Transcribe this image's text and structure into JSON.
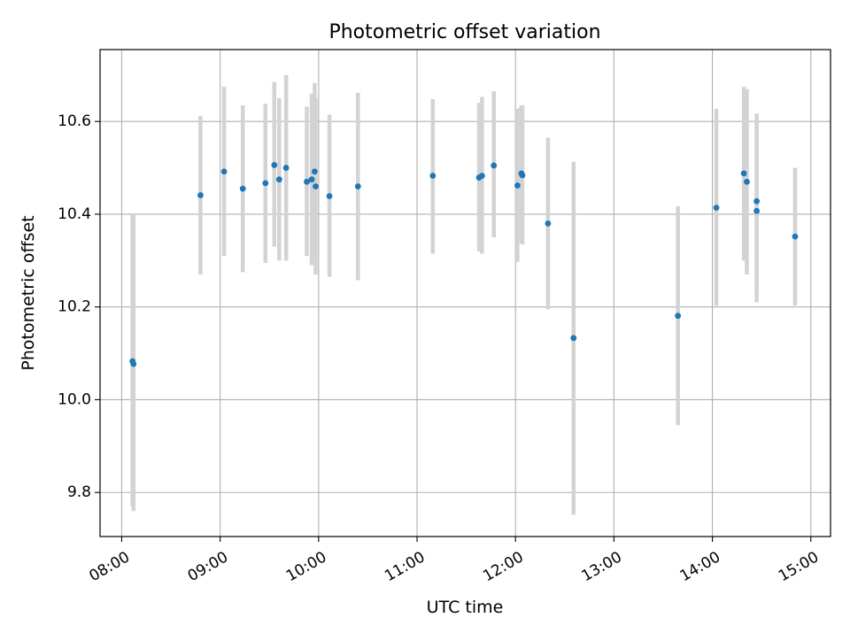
{
  "chart_data": {
    "type": "scatter",
    "title": "Photometric offset variation",
    "xlabel": "UTC time",
    "ylabel": "Photometric offset",
    "xlim": [
      7.78,
      15.2
    ],
    "ylim": [
      9.705,
      10.755
    ],
    "x_ticks": [
      8,
      9,
      10,
      11,
      12,
      13,
      14,
      15
    ],
    "x_tick_labels": [
      "08:00",
      "09:00",
      "10:00",
      "11:00",
      "12:00",
      "13:00",
      "14:00",
      "15:00"
    ],
    "y_ticks": [
      9.8,
      10.0,
      10.2,
      10.4,
      10.6
    ],
    "y_tick_labels": [
      "9.8",
      "10.0",
      "10.2",
      "10.4",
      "10.6"
    ],
    "grid": true,
    "colors": {
      "points": "#1f77b4",
      "errorbars": "#d3d3d3",
      "grid": "#b0b0b0",
      "axes": "#000000"
    },
    "series": [
      {
        "points": [
          {
            "x": 8.11,
            "y": 10.083,
            "ylo": 9.77,
            "yhi": 10.4
          },
          {
            "x": 8.12,
            "y": 10.077,
            "ylo": 9.76,
            "yhi": 10.4
          },
          {
            "x": 8.8,
            "y": 10.441,
            "ylo": 10.27,
            "yhi": 10.612
          },
          {
            "x": 9.04,
            "y": 10.492,
            "ylo": 10.31,
            "yhi": 10.675
          },
          {
            "x": 9.23,
            "y": 10.455,
            "ylo": 10.275,
            "yhi": 10.635
          },
          {
            "x": 9.46,
            "y": 10.467,
            "ylo": 10.295,
            "yhi": 10.638
          },
          {
            "x": 9.55,
            "y": 10.506,
            "ylo": 10.33,
            "yhi": 10.685
          },
          {
            "x": 9.6,
            "y": 10.475,
            "ylo": 10.3,
            "yhi": 10.65
          },
          {
            "x": 9.67,
            "y": 10.5,
            "ylo": 10.3,
            "yhi": 10.7
          },
          {
            "x": 9.88,
            "y": 10.47,
            "ylo": 10.31,
            "yhi": 10.632
          },
          {
            "x": 9.93,
            "y": 10.475,
            "ylo": 10.29,
            "yhi": 10.66
          },
          {
            "x": 9.96,
            "y": 10.492,
            "ylo": 10.3,
            "yhi": 10.683
          },
          {
            "x": 9.97,
            "y": 10.46,
            "ylo": 10.27,
            "yhi": 10.65
          },
          {
            "x": 10.11,
            "y": 10.439,
            "ylo": 10.265,
            "yhi": 10.615
          },
          {
            "x": 10.4,
            "y": 10.46,
            "ylo": 10.258,
            "yhi": 10.662
          },
          {
            "x": 11.16,
            "y": 10.483,
            "ylo": 10.315,
            "yhi": 10.648
          },
          {
            "x": 11.63,
            "y": 10.479,
            "ylo": 10.32,
            "yhi": 10.64
          },
          {
            "x": 11.66,
            "y": 10.483,
            "ylo": 10.315,
            "yhi": 10.653
          },
          {
            "x": 11.78,
            "y": 10.505,
            "ylo": 10.35,
            "yhi": 10.665
          },
          {
            "x": 12.02,
            "y": 10.462,
            "ylo": 10.297,
            "yhi": 10.628
          },
          {
            "x": 12.06,
            "y": 10.488,
            "ylo": 10.34,
            "yhi": 10.635
          },
          {
            "x": 12.07,
            "y": 10.484,
            "ylo": 10.335,
            "yhi": 10.635
          },
          {
            "x": 12.33,
            "y": 10.38,
            "ylo": 10.195,
            "yhi": 10.565
          },
          {
            "x": 12.59,
            "y": 10.133,
            "ylo": 9.752,
            "yhi": 10.513
          },
          {
            "x": 13.65,
            "y": 10.181,
            "ylo": 9.945,
            "yhi": 10.417
          },
          {
            "x": 14.04,
            "y": 10.414,
            "ylo": 10.203,
            "yhi": 10.627
          },
          {
            "x": 14.32,
            "y": 10.488,
            "ylo": 10.3,
            "yhi": 10.675
          },
          {
            "x": 14.35,
            "y": 10.47,
            "ylo": 10.27,
            "yhi": 10.67
          },
          {
            "x": 14.45,
            "y": 10.428,
            "ylo": 10.24,
            "yhi": 10.617
          },
          {
            "x": 14.45,
            "y": 10.407,
            "ylo": 10.21,
            "yhi": 10.6
          },
          {
            "x": 14.84,
            "y": 10.352,
            "ylo": 10.203,
            "yhi": 10.5
          }
        ]
      }
    ]
  }
}
